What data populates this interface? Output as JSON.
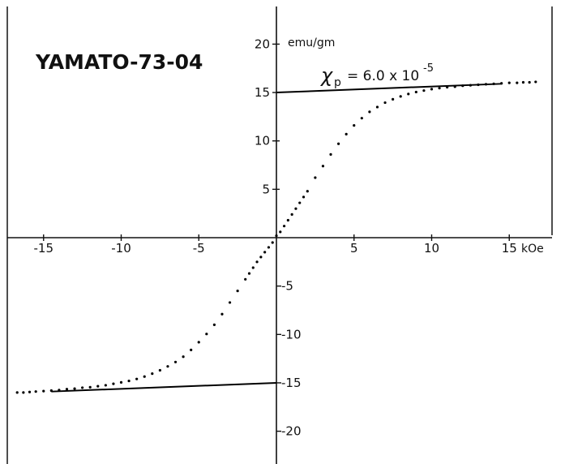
{
  "chart_data": {
    "type": "scatter",
    "title": "YAMATO-73-04",
    "x_unit": "kOe",
    "y_unit": "emu/gm",
    "xlim": [
      -17,
      17
    ],
    "ylim": [
      -23.5,
      23.5
    ],
    "x_ticks": [
      {
        "value": -15,
        "label": "-15"
      },
      {
        "value": -10,
        "label": "-10"
      },
      {
        "value": -5,
        "label": "-5"
      },
      {
        "value": 5,
        "label": "5"
      },
      {
        "value": 10,
        "label": "10"
      },
      {
        "value": 15,
        "label": "15"
      }
    ],
    "y_ticks": [
      {
        "value": 20,
        "label": "20"
      },
      {
        "value": 15,
        "label": "15"
      },
      {
        "value": 10,
        "label": "10"
      },
      {
        "value": 5,
        "label": "5"
      },
      {
        "value": -5,
        "label": "-5"
      },
      {
        "value": -10,
        "label": "-10"
      },
      {
        "value": -15,
        "label": "-15"
      },
      {
        "value": -20,
        "label": "-20"
      }
    ],
    "annotation": {
      "symbol": "χ",
      "subscript": "p",
      "mantissa": "= 6.0 x 10",
      "exponent": "-5"
    },
    "fit_lines": [
      {
        "x": [
          0,
          14.5
        ],
        "y": [
          15.0,
          15.9
        ]
      },
      {
        "x": [
          -14.5,
          0
        ],
        "y": [
          -15.9,
          -15.0
        ]
      }
    ],
    "points": {
      "x": [
        -16.7,
        -16.3,
        -15.9,
        -15.5,
        -15.0,
        -14.5,
        -14.0,
        -13.5,
        -13.0,
        -12.5,
        -12.0,
        -11.5,
        -11.0,
        -10.5,
        -10.0,
        -9.5,
        -9.0,
        -8.5,
        -8.0,
        -7.5,
        -7.0,
        -6.5,
        -6.0,
        -5.5,
        -5.0,
        -4.5,
        -4.0,
        -3.5,
        -3.0,
        -2.5,
        -2.0,
        -1.75,
        -1.5,
        -1.25,
        -1.0,
        -0.75,
        -0.5,
        -0.25,
        0.0,
        0.25,
        0.5,
        0.75,
        1.0,
        1.25,
        1.5,
        1.75,
        2.0,
        2.5,
        3.0,
        3.5,
        4.0,
        4.5,
        5.0,
        5.5,
        6.0,
        6.5,
        7.0,
        7.5,
        8.0,
        8.5,
        9.0,
        9.5,
        10.0,
        10.5,
        11.0,
        11.5,
        12.0,
        12.5,
        13.0,
        13.5,
        14.0,
        14.5,
        15.0,
        15.5,
        15.9,
        16.3,
        16.7
      ],
      "y": [
        -16.0,
        -16.0,
        -15.95,
        -15.9,
        -15.85,
        -15.8,
        -15.75,
        -15.65,
        -15.6,
        -15.5,
        -15.45,
        -15.35,
        -15.25,
        -15.1,
        -14.95,
        -14.8,
        -14.6,
        -14.35,
        -14.05,
        -13.7,
        -13.3,
        -12.85,
        -12.3,
        -11.6,
        -10.8,
        -9.95,
        -9.0,
        -7.9,
        -6.7,
        -5.5,
        -4.3,
        -3.7,
        -3.1,
        -2.5,
        -2.0,
        -1.5,
        -1.0,
        -0.5,
        0.2,
        0.6,
        1.2,
        1.8,
        2.4,
        3.0,
        3.6,
        4.2,
        4.8,
        6.2,
        7.4,
        8.6,
        9.7,
        10.7,
        11.6,
        12.35,
        13.0,
        13.5,
        13.95,
        14.3,
        14.6,
        14.85,
        15.05,
        15.2,
        15.35,
        15.45,
        15.55,
        15.6,
        15.7,
        15.75,
        15.8,
        15.85,
        15.9,
        15.95,
        16.0,
        16.0,
        16.05,
        16.05,
        16.1
      ]
    }
  }
}
